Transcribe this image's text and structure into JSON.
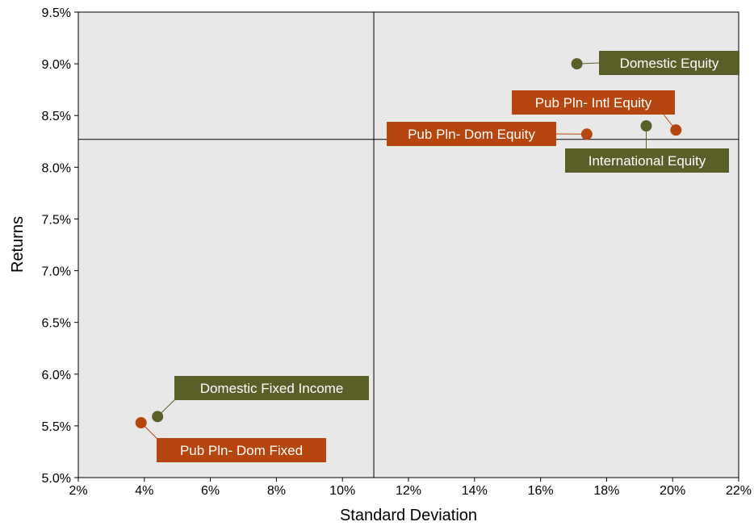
{
  "chart_data": {
    "type": "scatter",
    "xlabel": "Standard Deviation",
    "ylabel": "Returns",
    "xlim": [
      2,
      22
    ],
    "ylim": [
      5.0,
      9.5
    ],
    "x_ticks": [
      "2%",
      "4%",
      "6%",
      "8%",
      "10%",
      "12%",
      "14%",
      "16%",
      "18%",
      "20%",
      "22%"
    ],
    "y_ticks": [
      "5.0%",
      "5.5%",
      "6.0%",
      "6.5%",
      "7.0%",
      "7.5%",
      "8.0%",
      "8.5%",
      "9.0%",
      "9.5%"
    ],
    "reference_lines": {
      "x": 10.95,
      "y": 8.27
    },
    "grid": false,
    "colors": {
      "asset_class": "#5a5f2a",
      "public_plan": "#b5460f",
      "plot_bg": "#e8e8e8"
    },
    "points": [
      {
        "label": "Domestic Equity",
        "x": 17.1,
        "y": 9.0,
        "group": "asset_class"
      },
      {
        "label": "International Equity",
        "x": 19.2,
        "y": 8.4,
        "group": "asset_class"
      },
      {
        "label": "Pub Pln- Intl Equity",
        "x": 20.1,
        "y": 8.36,
        "group": "public_plan"
      },
      {
        "label": "Pub Pln- Dom Equity",
        "x": 17.4,
        "y": 8.32,
        "group": "public_plan"
      },
      {
        "label": "Domestic Fixed Income",
        "x": 4.4,
        "y": 5.59,
        "group": "asset_class"
      },
      {
        "label": "Pub Pln- Dom Fixed",
        "x": 3.9,
        "y": 5.53,
        "group": "public_plan"
      }
    ]
  }
}
